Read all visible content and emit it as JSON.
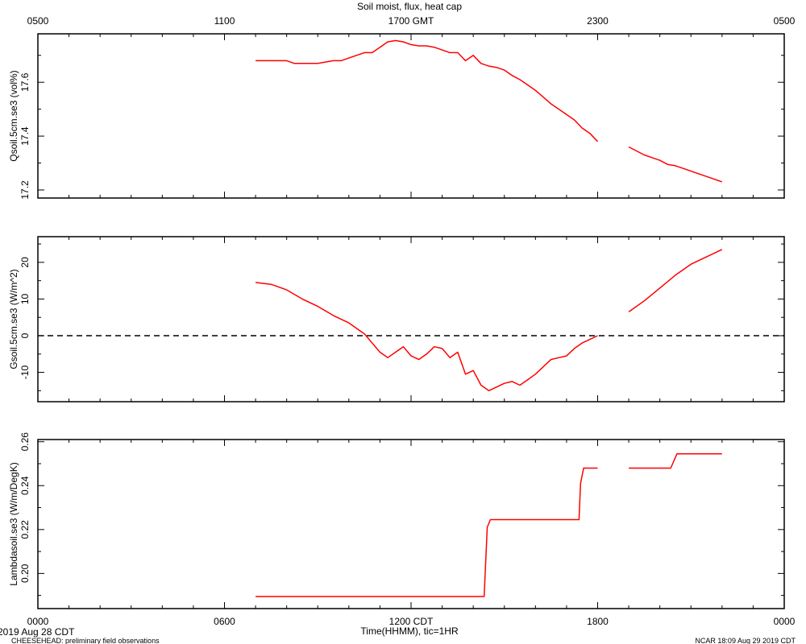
{
  "title": "Soil moist, flux, heat cap",
  "top_axis": {
    "tick_labels": [
      "0500",
      "1100",
      "1700 GMT",
      "2300",
      "0500"
    ]
  },
  "bottom_axis": {
    "tick_labels": [
      "0000",
      "0600",
      "1200 CDT",
      "1800",
      "0000"
    ],
    "label": "Time(HHMM), tic=1HR"
  },
  "footer": {
    "date_label": "2019 Aug 28 CDT",
    "project_label": "CHEESEHEAD: preliminary field observations",
    "credit_label": "NCAR 18:09 Aug 29 2019 CDT"
  },
  "colors": {
    "series": "#ff0000",
    "axes": "#000000"
  },
  "chart_data": [
    {
      "type": "line",
      "ylabel": "Qsoil.5cm.se3 (vol%)",
      "x_unit": "hours CDT since 0000 Aug 28",
      "xlim": [
        0,
        24
      ],
      "ylim": [
        17.17,
        17.78
      ],
      "y_ticks": [
        17.2,
        17.4,
        17.6
      ],
      "y_tick_labels": [
        "17.2",
        "17.4",
        "17.6"
      ],
      "grid": false,
      "segments": [
        {
          "x": [
            7.0,
            7.5,
            8.0,
            8.25,
            8.5,
            9.0,
            9.5,
            9.75,
            10.0,
            10.5,
            10.75,
            11.0,
            11.25,
            11.5,
            11.75,
            12.0,
            12.25,
            12.5,
            12.75,
            13.0,
            13.25,
            13.5,
            13.75,
            14.0,
            14.25,
            14.5,
            14.75,
            15.0,
            15.25,
            15.5,
            15.75,
            16.0,
            16.25,
            16.5,
            16.75,
            17.0,
            17.25,
            17.5,
            17.75,
            18.0
          ],
          "y": [
            17.68,
            17.68,
            17.68,
            17.67,
            17.67,
            17.67,
            17.68,
            17.68,
            17.69,
            17.71,
            17.71,
            17.73,
            17.75,
            17.755,
            17.75,
            17.74,
            17.735,
            17.735,
            17.73,
            17.72,
            17.71,
            17.71,
            17.68,
            17.7,
            17.67,
            17.66,
            17.655,
            17.645,
            17.625,
            17.61,
            17.59,
            17.57,
            17.545,
            17.52,
            17.5,
            17.48,
            17.46,
            17.43,
            17.41,
            17.38
          ]
        },
        {
          "x": [
            19.0,
            19.25,
            19.5,
            19.75,
            20.0,
            20.25,
            20.5,
            20.75,
            21.0,
            21.25,
            21.5,
            21.75,
            22.0
          ],
          "y": [
            17.36,
            17.345,
            17.33,
            17.32,
            17.31,
            17.295,
            17.29,
            17.28,
            17.27,
            17.26,
            17.25,
            17.24,
            17.23
          ]
        }
      ]
    },
    {
      "type": "line",
      "ylabel": "Gsoil.5cm.se3 (W/m^2)",
      "x_unit": "hours CDT since 0000 Aug 28",
      "xlim": [
        0,
        24
      ],
      "ylim": [
        -18,
        27
      ],
      "y_ticks": [
        -10,
        0,
        10,
        20
      ],
      "y_tick_labels": [
        "-10",
        "0",
        "10",
        "20"
      ],
      "reference_line": {
        "y": 0,
        "style": "dashed"
      },
      "grid": false,
      "segments": [
        {
          "x": [
            7.0,
            7.5,
            8.0,
            8.5,
            9.0,
            9.5,
            10.0,
            10.5,
            11.0,
            11.25,
            11.5,
            11.75,
            12.0,
            12.25,
            12.5,
            12.75,
            13.0,
            13.25,
            13.5,
            13.75,
            14.0,
            14.25,
            14.5,
            14.75,
            15.0,
            15.25,
            15.5,
            15.75,
            16.0,
            16.25,
            16.5,
            16.75,
            17.0,
            17.25,
            17.5,
            17.75,
            18.0
          ],
          "y": [
            14.5,
            14.0,
            12.5,
            10.0,
            8.0,
            5.5,
            3.5,
            0.5,
            -4.5,
            -6.0,
            -4.5,
            -3.0,
            -5.5,
            -6.5,
            -5.0,
            -3.0,
            -3.5,
            -6.0,
            -4.5,
            -10.5,
            -9.5,
            -13.5,
            -15.0,
            -14.0,
            -13.0,
            -12.5,
            -13.5,
            -12.0,
            -10.5,
            -8.5,
            -6.5,
            -6.0,
            -5.5,
            -3.5,
            -2.0,
            -1.0,
            0.0
          ]
        },
        {
          "x": [
            19.0,
            19.5,
            20.0,
            20.5,
            21.0,
            21.5,
            22.0
          ],
          "y": [
            6.5,
            9.5,
            13.0,
            16.5,
            19.5,
            21.5,
            23.5
          ]
        }
      ]
    },
    {
      "type": "line",
      "ylabel": "Lambdasoil.se3 (W/m/DegK)",
      "x_unit": "hours CDT since 0000 Aug 28",
      "xlim": [
        0,
        24
      ],
      "ylim": [
        0.184,
        0.261
      ],
      "y_ticks": [
        0.2,
        0.22,
        0.24,
        0.26
      ],
      "y_tick_labels": [
        "0.20",
        "0.22",
        "0.24",
        "0.26"
      ],
      "grid": false,
      "segments": [
        {
          "x": [
            7.0,
            14.35,
            14.45,
            14.55,
            17.4,
            17.45,
            17.55,
            18.0
          ],
          "y": [
            0.1895,
            0.1895,
            0.221,
            0.2245,
            0.2245,
            0.241,
            0.248,
            0.248
          ]
        },
        {
          "x": [
            19.0,
            20.35,
            20.55,
            22.0
          ],
          "y": [
            0.248,
            0.248,
            0.2545,
            0.2545
          ]
        }
      ]
    }
  ]
}
